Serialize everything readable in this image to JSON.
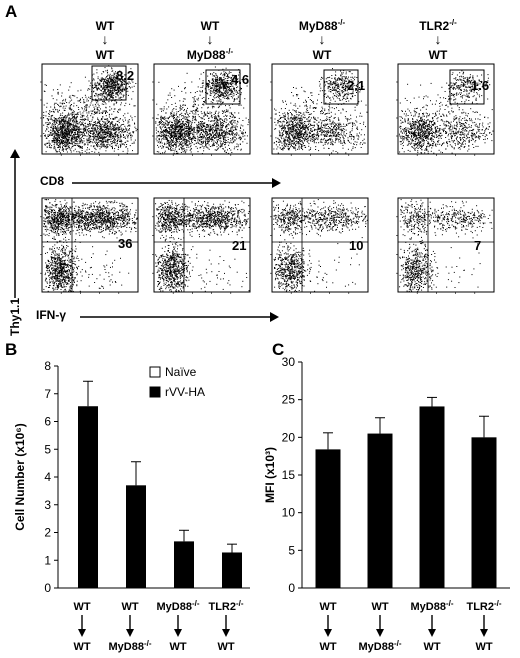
{
  "panel_labels": {
    "a": "A",
    "b": "B",
    "c": "C"
  },
  "groups": [
    {
      "top": "WT",
      "bottom": "WT",
      "top_sup": "",
      "bottom_sup": ""
    },
    {
      "top": "WT",
      "bottom": "MyD88",
      "top_sup": "",
      "bottom_sup": "-/-"
    },
    {
      "top": "MyD88",
      "bottom": "WT",
      "top_sup": "-/-",
      "bottom_sup": ""
    },
    {
      "top": "TLR2",
      "bottom": "WT",
      "top_sup": "-/-",
      "bottom_sup": ""
    }
  ],
  "panel_a": {
    "cd8_percentages": [
      "8.2",
      "4.6",
      "2.1",
      "1.6"
    ],
    "ifng_percentages": [
      "36",
      "21",
      "10",
      "7"
    ],
    "x_label_top": "CD8",
    "x_label_bottom": "IFN-γ",
    "y_label": "Thy1.1"
  },
  "chart_data": [
    {
      "type": "bar",
      "title": "",
      "ylabel": "Cell Number (x10⁶)",
      "ylim": [
        0,
        8
      ],
      "yticks": [
        "0",
        "1",
        "2",
        "3",
        "4",
        "5",
        "6",
        "7",
        "8"
      ],
      "categories": [
        "WT → WT",
        "WT → MyD88-/-",
        "MyD88-/- → WT",
        "TLR2-/- → WT"
      ],
      "legend": [
        "Naïve",
        "rVV-HA"
      ],
      "series": [
        {
          "name": "Naïve",
          "values": [
            0,
            0,
            0,
            0
          ]
        },
        {
          "name": "rVV-HA",
          "values": [
            6.55,
            3.7,
            1.68,
            1.28
          ],
          "errors": [
            0.9,
            0.85,
            0.4,
            0.3
          ]
        }
      ]
    },
    {
      "type": "bar",
      "title": "",
      "ylabel": "MFI (x10³)",
      "ylim": [
        0,
        30
      ],
      "yticks": [
        "0",
        "5",
        "10",
        "15",
        "20",
        "25",
        "30"
      ],
      "categories": [
        "WT → WT",
        "WT → MyD88-/-",
        "MyD88-/- → WT",
        "TLR2-/- → WT"
      ],
      "series": [
        {
          "name": "",
          "values": [
            18.4,
            20.5,
            24.1,
            20.0
          ],
          "errors": [
            2.2,
            2.1,
            1.2,
            2.8
          ]
        }
      ]
    }
  ],
  "colors": {
    "bar": "#000000",
    "axis": "#000000",
    "dots": "#000000"
  }
}
